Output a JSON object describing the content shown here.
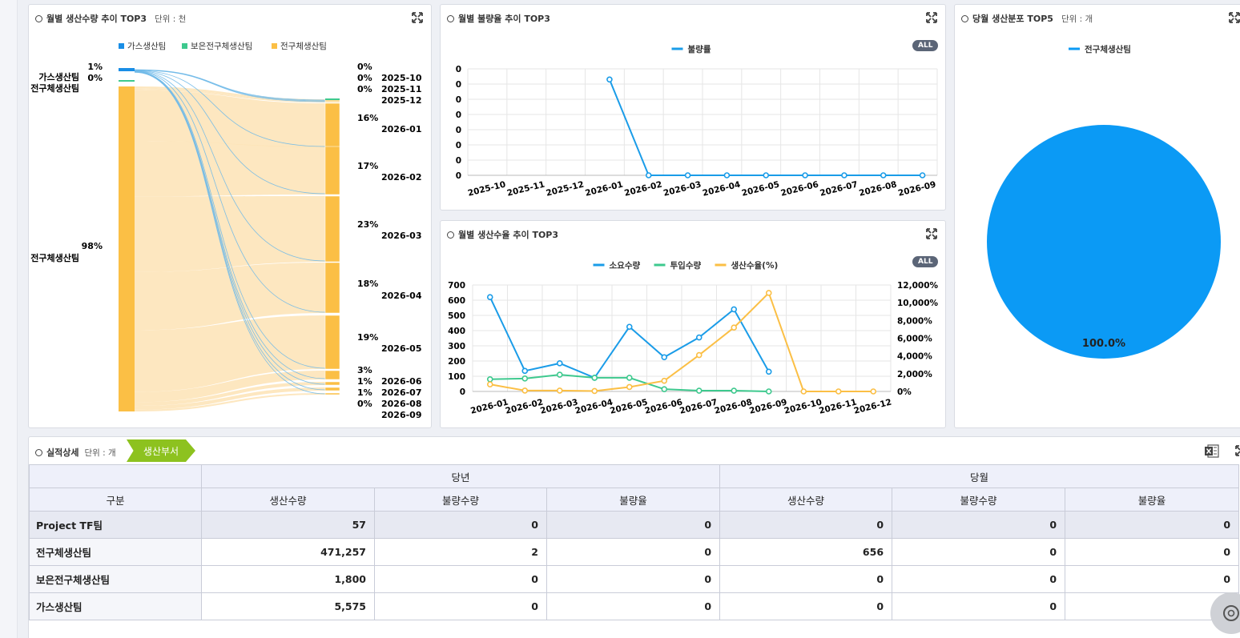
{
  "panel1": {
    "title": "월별 생산수량 추이 TOP3",
    "unit": "단위 : 천",
    "legend": [
      {
        "name": "가스생산팀",
        "color": "#1a8ee6"
      },
      {
        "name": "보은전구체생산팀",
        "color": "#3ec98e"
      },
      {
        "name": "전구체생산팀",
        "color": "#fbbf45"
      }
    ],
    "left_nodes": [
      {
        "pct": "1%",
        "name": "가스생산팀"
      },
      {
        "pct": "0%",
        "name": "전구체생산팀"
      },
      {
        "pct": "98%",
        "name": "전구체생산팀"
      }
    ],
    "right_nodes": [
      {
        "pct": "0%",
        "name": "2025-10"
      },
      {
        "pct": "0%",
        "name": "2025-11"
      },
      {
        "pct": "0%",
        "name": "2025-12"
      },
      {
        "pct": "16%",
        "name": "2026-01"
      },
      {
        "pct": "17%",
        "name": "2026-02"
      },
      {
        "pct": "23%",
        "name": "2026-03"
      },
      {
        "pct": "18%",
        "name": "2026-04"
      },
      {
        "pct": "19%",
        "name": "2026-05"
      },
      {
        "pct": "3%",
        "name": "2026-06"
      },
      {
        "pct": "1%",
        "name": "2026-07"
      },
      {
        "pct": "1%",
        "name": "2026-08"
      },
      {
        "pct": "0%",
        "name": "2026-09"
      }
    ]
  },
  "panel2": {
    "title": "월별 불량율 추이 TOP3",
    "all_label": "ALL",
    "chart_data": {
      "type": "line",
      "x": [
        "2025-10",
        "2025-11",
        "2025-12",
        "2026-01",
        "2026-02",
        "2026-03",
        "2026-04",
        "2026-05",
        "2026-06",
        "2026-07",
        "2026-08",
        "2026-09"
      ],
      "yticks": [
        "0",
        "0",
        "0",
        "0",
        "0",
        "0",
        "0",
        "0"
      ],
      "series": [
        {
          "name": "불량률",
          "color": "#1a9ce8",
          "values": [
            null,
            null,
            null,
            0.18,
            0,
            0,
            0,
            0,
            0,
            0,
            0,
            0
          ]
        }
      ],
      "ylim": [
        0,
        0.2
      ],
      "grid": true,
      "legend": "top"
    }
  },
  "panel3": {
    "title": "당월 생산분포 TOP5",
    "unit": "단위 : 개",
    "chart_data": {
      "type": "pie",
      "categories": [
        "전구체생산팀"
      ],
      "values": [
        100.0
      ],
      "colors": [
        "#0b9af5"
      ],
      "data_labels": [
        "100.0%"
      ],
      "legend": "top"
    }
  },
  "panel4": {
    "title": "월별 생산수율 추이 TOP3",
    "all_label": "ALL",
    "chart_data": {
      "type": "line",
      "x": [
        "2026-01",
        "2026-02",
        "2026-03",
        "2026-04",
        "2026-05",
        "2026-06",
        "2026-07",
        "2026-08",
        "2026-09",
        "2026-10",
        "2026-11",
        "2026-12"
      ],
      "yticks_left": [
        "700",
        "600",
        "500",
        "400",
        "300",
        "200",
        "100",
        "0"
      ],
      "yticks_right": [
        "12,000%",
        "10,000%",
        "8,000%",
        "6,000%",
        "4,000%",
        "2,000%",
        "0%"
      ],
      "ylim_left": [
        0,
        700
      ],
      "ylim_right": [
        0,
        12000
      ],
      "series": [
        {
          "name": "소요수량",
          "color": "#1a9ce8",
          "axis": "left",
          "values": [
            620,
            135,
            185,
            90,
            425,
            225,
            355,
            540,
            130,
            null,
            null,
            null
          ]
        },
        {
          "name": "투입수량",
          "color": "#3ec98e",
          "axis": "left",
          "values": [
            80,
            85,
            110,
            90,
            90,
            15,
            5,
            5,
            0,
            null,
            null,
            null
          ]
        },
        {
          "name": "생산수율(%)",
          "color": "#fbbf45",
          "axis": "right",
          "values": [
            800,
            100,
            100,
            50,
            500,
            1200,
            4100,
            7200,
            11100,
            0,
            0,
            0
          ]
        }
      ],
      "grid": true,
      "legend": "top"
    }
  },
  "detail": {
    "title": "실적상세",
    "unit": "단위 : 개",
    "tag": "생산부서",
    "group_headers": [
      "당년",
      "당월"
    ],
    "columns": [
      "구분",
      "생산수량",
      "불량수량",
      "불량율",
      "생산수량",
      "불량수량",
      "불량율"
    ],
    "rows": [
      [
        "Project TF팀",
        "57",
        "0",
        "0",
        "0",
        "0",
        "0"
      ],
      [
        "전구체생산팀",
        "471,257",
        "2",
        "0",
        "656",
        "0",
        "0"
      ],
      [
        "보은전구체생산팀",
        "1,800",
        "0",
        "0",
        "0",
        "0",
        "0"
      ],
      [
        "가스생산팀",
        "5,575",
        "0",
        "0",
        "0",
        "0",
        "0"
      ]
    ]
  }
}
